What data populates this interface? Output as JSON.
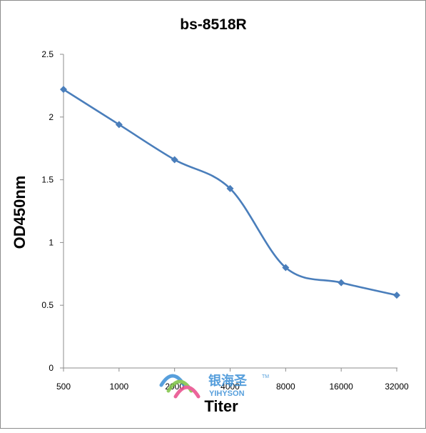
{
  "chart_data": {
    "type": "line",
    "title": "bs-8518R",
    "xlabel": "Titer",
    "ylabel": "OD450nm",
    "categories": [
      "500",
      "1000",
      "2000",
      "4000",
      "8000",
      "16000",
      "32000"
    ],
    "series": [
      {
        "values": [
          2.22,
          1.94,
          1.66,
          1.43,
          0.8,
          0.68,
          0.58
        ]
      }
    ],
    "ylim": [
      0,
      2.5
    ],
    "yticks": [
      "0",
      "0.5",
      "1",
      "1.5",
      "2",
      "2.5"
    ],
    "grid": false,
    "line_color": "#4a7ebb",
    "marker": "diamond"
  },
  "watermark": {
    "text_cn": "银海圣",
    "text_en": "YIHYSON",
    "trademark": "TM",
    "colors": [
      "#3a8fd6",
      "#7cc242",
      "#e84b8a"
    ]
  }
}
